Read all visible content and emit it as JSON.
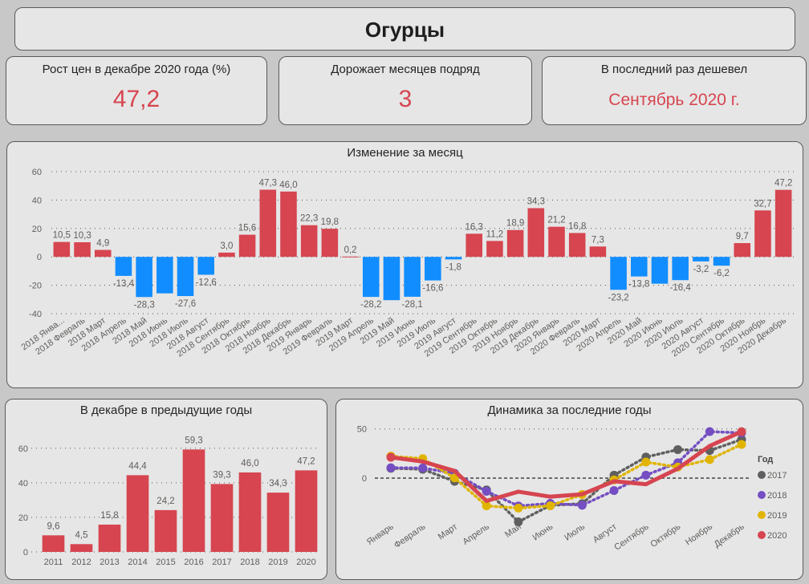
{
  "header": {
    "title": "Огурцы"
  },
  "kpis": [
    {
      "label": "Рост цен в декабре 2020 года (%)",
      "value": "47,2"
    },
    {
      "label": "Дорожает месяцев подряд",
      "value": "3"
    },
    {
      "label": "В последний раз дешевел",
      "value": "Сентябрь 2020 г."
    }
  ],
  "colors": {
    "positive": "#d64550",
    "negative": "#118dff",
    "kpi_value": "#d64550",
    "series_2017": "#5f5f5f",
    "series_2018": "#744ec2",
    "series_2019": "#e0b400",
    "series_2020": "#d64550"
  },
  "chart_data": [
    {
      "id": "monthly",
      "type": "bar",
      "title": "Изменение за месяц",
      "xlabel": "",
      "ylabel": "",
      "ylim": [
        -40,
        60
      ],
      "yticks": [
        "-40",
        "-20",
        "0",
        "20",
        "40",
        "60"
      ],
      "grid": true,
      "categories": [
        "2018 Янва...",
        "2018 Февраль",
        "2018 Март",
        "2018 Апрель",
        "2018 Май",
        "2018 Июнь",
        "2018 Июль",
        "2018 Август",
        "2018 Сентябрь",
        "2018 Октябрь",
        "2018 Ноябрь",
        "2018 Декабрь",
        "2019 Январь",
        "2019 Февраль",
        "2019 Март",
        "2019 Апрель",
        "2019 Май",
        "2019 Июнь",
        "2019 Июль",
        "2019 Август",
        "2019 Сентябрь",
        "2019 Октябрь",
        "2019 Ноябрь",
        "2019 Декабрь",
        "2020 Январь",
        "2020 Февраль",
        "2020 Март",
        "2020 Апрель",
        "2020 Май",
        "2020 Июнь",
        "2020 Июль",
        "2020 Август",
        "2020 Сентябрь",
        "2020 Октябрь",
        "2020 Ноябрь",
        "2020 Декабрь"
      ],
      "values": [
        10.5,
        10.3,
        4.9,
        -13.4,
        -28.3,
        -25.7,
        -27.6,
        -12.6,
        3.0,
        15.6,
        47.3,
        46.0,
        22.3,
        19.8,
        0.2,
        -28.2,
        -30.5,
        -28.1,
        -16.6,
        -1.8,
        16.3,
        11.2,
        18.9,
        34.3,
        21.2,
        16.8,
        7.3,
        -23.2,
        -13.8,
        -18.9,
        -16.4,
        -3.2,
        -6.2,
        9.7,
        32.7,
        47.2
      ],
      "labels": [
        "10,5",
        "10,3",
        "4,9",
        "-13,4",
        "-28,3",
        "",
        "-27,6",
        "-12,6",
        "3,0",
        "15,6",
        "47,3",
        "46,0",
        "22,3",
        "19,8",
        "0,2",
        "-28,2",
        "",
        "-28,1",
        "-16,6",
        "-1,8",
        "16,3",
        "11,2",
        "18,9",
        "34,3",
        "21,2",
        "16,8",
        "7,3",
        "-23,2",
        "-13,8",
        "",
        "-16,4",
        "-3,2",
        "-6,2",
        "9,7",
        "32,7",
        "47,2"
      ]
    },
    {
      "id": "december",
      "type": "bar",
      "title": "В декабре в предыдущие годы",
      "xlabel": "",
      "ylabel": "",
      "ylim": [
        0,
        65
      ],
      "yticks": [
        "0",
        "20",
        "40",
        "60"
      ],
      "grid": true,
      "categories": [
        "2011",
        "2012",
        "2013",
        "2014",
        "2015",
        "2016",
        "2017",
        "2018",
        "2019",
        "2020"
      ],
      "values": [
        9.6,
        4.5,
        15.8,
        44.4,
        24.2,
        59.3,
        39.3,
        46.0,
        34.3,
        47.2
      ],
      "labels": [
        "9,6",
        "4,5",
        "15,8",
        "44,4",
        "24,2",
        "59,3",
        "39,3",
        "46,0",
        "34,3",
        "47,2"
      ]
    },
    {
      "id": "dynamics",
      "type": "line",
      "title": "Динамика за последние годы",
      "xlabel": "",
      "ylabel": "",
      "ylim": [
        -50,
        50
      ],
      "yticks": [
        "0",
        "50"
      ],
      "grid": true,
      "legend": {
        "title": "Год",
        "position": "right"
      },
      "categories": [
        "Январь",
        "Февраль",
        "Март",
        "Апрель",
        "Май",
        "Июнь",
        "Июль",
        "Август",
        "Сентябрь",
        "Октябрь",
        "Ноябрь",
        "Декабрь"
      ],
      "series": [
        {
          "name": "2017",
          "values": [
            10.0,
            9.0,
            -3.3,
            -12.0,
            -44.5,
            -27.7,
            -26.0,
            3.0,
            21.4,
            29.0,
            28.0,
            39.3
          ]
        },
        {
          "name": "2018",
          "values": [
            10.5,
            10.3,
            4.9,
            -13.4,
            -28.3,
            -25.7,
            -27.6,
            -12.6,
            3.0,
            15.6,
            47.3,
            46.0
          ]
        },
        {
          "name": "2019",
          "values": [
            22.3,
            19.8,
            0.2,
            -28.2,
            -30.5,
            -28.1,
            -16.6,
            -1.8,
            16.3,
            11.2,
            18.9,
            34.3
          ]
        },
        {
          "name": "2020",
          "values": [
            21.2,
            16.8,
            7.3,
            -23.2,
            -13.8,
            -18.9,
            -16.4,
            -3.2,
            -6.2,
            9.7,
            32.7,
            47.2
          ]
        }
      ]
    }
  ]
}
